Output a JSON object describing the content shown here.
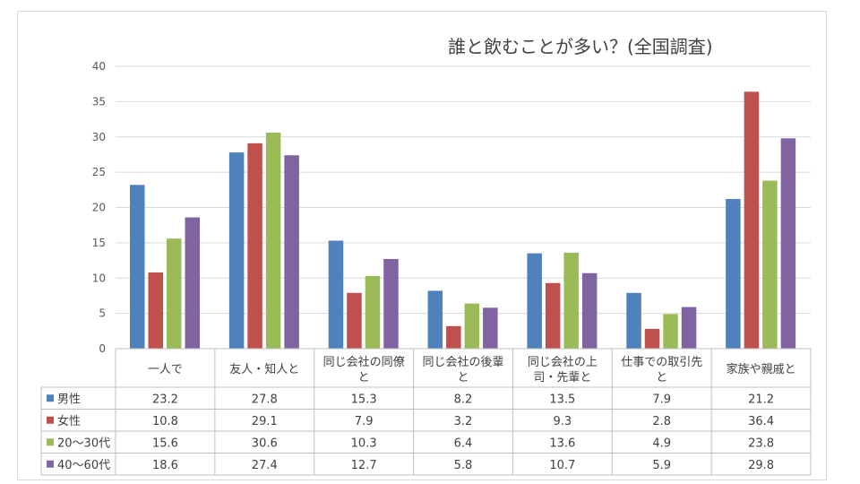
{
  "chart_data": {
    "type": "bar",
    "title": "誰と飲むことが多い？(全国調査)",
    "xlabel": "",
    "ylabel": "",
    "ylim": [
      0,
      40
    ],
    "yticks": [
      0,
      5,
      10,
      15,
      20,
      25,
      30,
      35,
      40
    ],
    "grid": true,
    "legend": "data-table",
    "categories": [
      [
        "一人で"
      ],
      [
        "友人・知人と"
      ],
      [
        "同じ会社の同僚",
        "と"
      ],
      [
        "同じ会社の後輩",
        "と"
      ],
      [
        "同じ会社の上",
        "司・先輩と"
      ],
      [
        "仕事での取引先",
        "と"
      ],
      [
        "家族や親戚と"
      ]
    ],
    "series": [
      {
        "name": "男性",
        "color": "#4f81bd",
        "values": [
          23.2,
          27.8,
          15.3,
          8.2,
          13.5,
          7.9,
          21.2
        ]
      },
      {
        "name": "女性",
        "color": "#c0504d",
        "values": [
          10.8,
          29.1,
          7.9,
          3.2,
          9.3,
          2.8,
          36.4
        ]
      },
      {
        "name": "20〜30代",
        "color": "#9bbb59",
        "values": [
          15.6,
          30.6,
          10.3,
          6.4,
          13.6,
          4.9,
          23.8
        ]
      },
      {
        "name": "40〜60代",
        "color": "#8064a2",
        "values": [
          18.6,
          27.4,
          12.7,
          5.8,
          10.7,
          5.9,
          29.8
        ]
      }
    ]
  }
}
